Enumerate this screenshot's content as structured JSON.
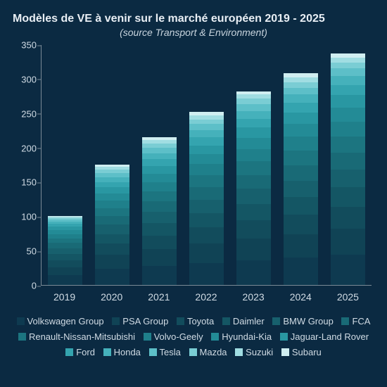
{
  "title": "Modèles de VE à venir sur le marché européen 2019 - 2025",
  "subtitle": "(source Transport & Environment)",
  "chart": {
    "type": "stacked-bar",
    "background_color": "#0b2a42",
    "text_color": "#d0dbe4",
    "axis_color": "#7a8a96",
    "title_fontsize": 16,
    "subtitle_fontsize": 14,
    "label_fontsize": 13,
    "ylim": [
      0,
      350
    ],
    "yticks": [
      0,
      50,
      100,
      150,
      200,
      250,
      300,
      350
    ],
    "categories": [
      "2019",
      "2020",
      "2021",
      "2022",
      "2023",
      "2024",
      "2025"
    ],
    "bar_width": 0.74,
    "series": [
      {
        "name": "Volkswagen Group",
        "color": "#0e3a50",
        "values": [
          14,
          24,
          28,
          32,
          36,
          40,
          44
        ]
      },
      {
        "name": "PSA Group",
        "color": "#104355",
        "values": [
          12,
          20,
          24,
          28,
          32,
          34,
          38
        ]
      },
      {
        "name": "Toyota",
        "color": "#124c5c",
        "values": [
          10,
          16,
          20,
          24,
          26,
          28,
          32
        ]
      },
      {
        "name": "Daimler",
        "color": "#145664",
        "values": [
          9,
          14,
          18,
          20,
          24,
          26,
          28
        ]
      },
      {
        "name": "BMW Group",
        "color": "#17606d",
        "values": [
          8,
          14,
          16,
          20,
          22,
          24,
          26
        ]
      },
      {
        "name": "FCA",
        "color": "#196a76",
        "values": [
          8,
          12,
          16,
          18,
          20,
          22,
          24
        ]
      },
      {
        "name": "Renault-Nissan-Mitsubishi",
        "color": "#1c7580",
        "values": [
          7,
          12,
          14,
          18,
          20,
          22,
          24
        ]
      },
      {
        "name": "Volvo-Geely",
        "color": "#1f808b",
        "values": [
          6,
          11,
          14,
          16,
          18,
          20,
          22
        ]
      },
      {
        "name": "Hyundai-Kia",
        "color": "#238b96",
        "values": [
          6,
          10,
          12,
          14,
          16,
          18,
          20
        ]
      },
      {
        "name": "Jaguar-Land Rover",
        "color": "#2997a2",
        "values": [
          5,
          9,
          11,
          13,
          15,
          17,
          18
        ]
      },
      {
        "name": "Ford",
        "color": "#34a4af",
        "values": [
          4,
          8,
          10,
          12,
          13,
          14,
          15
        ]
      },
      {
        "name": "Honda",
        "color": "#45b1bb",
        "values": [
          3,
          7,
          9,
          10,
          11,
          12,
          13
        ]
      },
      {
        "name": "Tesla",
        "color": "#5dbfc8",
        "values": [
          3,
          6,
          8,
          9,
          10,
          10,
          11
        ]
      },
      {
        "name": "Mazda",
        "color": "#7acdd4",
        "values": [
          2,
          5,
          6,
          7,
          8,
          8,
          9
        ]
      },
      {
        "name": "Suzuki",
        "color": "#a0dde2",
        "values": [
          2,
          4,
          5,
          6,
          6,
          7,
          7
        ]
      },
      {
        "name": "Subaru",
        "color": "#d0eef1",
        "values": [
          1,
          3,
          4,
          5,
          5,
          6,
          6
        ]
      }
    ]
  }
}
